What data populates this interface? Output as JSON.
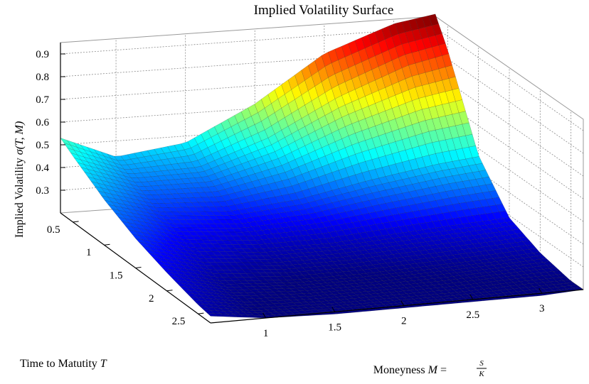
{
  "chart_data": {
    "type": "surface",
    "title": "Implied Volatility Surface",
    "xlabel": {
      "prefix": "Moneyness ",
      "symbol": "M",
      "equals": " = ",
      "numerator": "S",
      "denominator": "K"
    },
    "ylabel": {
      "prefix": "Time to Matutity ",
      "symbol": "T"
    },
    "zlabel": {
      "prefix": "Implied Volatility ",
      "symbol": "σ(T, M)"
    },
    "x_ticks": [
      "1",
      "1.5",
      "2",
      "2.5",
      "3"
    ],
    "y_ticks": [
      "0.5",
      "1",
      "1.5",
      "2",
      "2.5"
    ],
    "z_ticks": [
      "0.3",
      "0.4",
      "0.5",
      "0.6",
      "0.7",
      "0.8",
      "0.9"
    ],
    "xlim": [
      0.6,
      3.3
    ],
    "ylim": [
      0.3,
      2.7
    ],
    "zlim": [
      0.2,
      0.95
    ],
    "grid": true,
    "colormap": "jet",
    "surface": {
      "moneyness": [
        0.6,
        1.0,
        1.5,
        2.0,
        2.5,
        3.0,
        3.3
      ],
      "maturity": [
        0.3,
        0.5,
        1.0,
        1.5,
        2.0,
        2.5,
        2.7
      ],
      "sigma_rows_by_maturity": [
        [
          0.53,
          0.43,
          0.47,
          0.62,
          0.82,
          0.93,
          0.96
        ],
        [
          0.49,
          0.4,
          0.41,
          0.52,
          0.68,
          0.8,
          0.84
        ],
        [
          0.4,
          0.33,
          0.31,
          0.34,
          0.4,
          0.45,
          0.47
        ],
        [
          0.33,
          0.27,
          0.24,
          0.24,
          0.26,
          0.28,
          0.29
        ],
        [
          0.28,
          0.22,
          0.2,
          0.2,
          0.21,
          0.22,
          0.23
        ],
        [
          0.24,
          0.2,
          0.19,
          0.19,
          0.19,
          0.2,
          0.2
        ],
        [
          0.23,
          0.2,
          0.19,
          0.19,
          0.19,
          0.19,
          0.2
        ]
      ]
    }
  }
}
